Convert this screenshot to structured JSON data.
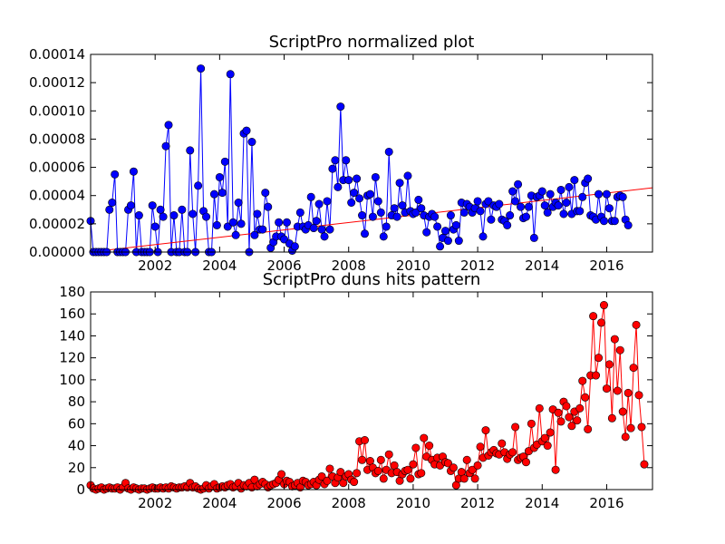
{
  "chart_data": [
    {
      "type": "line",
      "title": "ScriptPro normalized plot",
      "xlabel": "",
      "ylabel": "",
      "xlim": [
        2000.0,
        2017.42
      ],
      "ylim": [
        0,
        0.00014
      ],
      "x_ticks": [
        2002,
        2004,
        2006,
        2008,
        2010,
        2012,
        2014,
        2016
      ],
      "x_tick_labels": [
        "2002",
        "2004",
        "2006",
        "2008",
        "2010",
        "2012",
        "2014",
        "2016"
      ],
      "y_ticks": [
        0,
        2e-05,
        4e-05,
        6e-05,
        8e-05,
        0.0001,
        0.00012,
        0.00014
      ],
      "y_tick_labels": [
        "0.00000",
        "0.00002",
        "0.00004",
        "0.00006",
        "0.00008",
        "0.00010",
        "0.00012",
        "0.00014"
      ],
      "grid": false,
      "series": [
        {
          "color": "#0000ff",
          "marker": "circle",
          "x_start": 2000.0,
          "x_step": 0.08333,
          "values": [
            2.2e-05,
            0,
            0,
            0,
            0,
            0,
            0,
            3e-05,
            3.5e-05,
            5.5e-05,
            0,
            0,
            0,
            0,
            3e-05,
            3.3e-05,
            5.7e-05,
            0,
            2.6e-05,
            0,
            0,
            0,
            0,
            3.3e-05,
            1.8e-05,
            0,
            3e-05,
            2.5e-05,
            7.5e-05,
            9e-05,
            0,
            2.6e-05,
            0,
            0,
            3e-05,
            0,
            0,
            7.2e-05,
            2.7e-05,
            0,
            4.7e-05,
            0.00013,
            2.9e-05,
            2.5e-05,
            0,
            0,
            4.1e-05,
            1.9e-05,
            5.3e-05,
            4.2e-05,
            6.4e-05,
            1.8e-05,
            0.000126,
            2.1e-05,
            1.2e-05,
            3.5e-05,
            2e-05,
            8.4e-05,
            8.6e-05,
            0,
            7.8e-05,
            1.2e-05,
            2.7e-05,
            1.6e-05,
            1.6e-05,
            4.2e-05,
            3.2e-05,
            3e-06,
            7e-06,
            1.1e-05,
            2.1e-05,
            1.1e-05,
            9e-06,
            2.1e-05,
            6e-06,
            1e-06,
            4e-06,
            1.8e-05,
            2.8e-05,
            1.8e-05,
            1.6e-05,
            1.9e-05,
            3.9e-05,
            1.7e-05,
            2.2e-05,
            3.4e-05,
            1.6e-05,
            1.1e-05,
            3.6e-05,
            1.6e-05,
            5.9e-05,
            6.5e-05,
            4.6e-05,
            0.000103,
            5.1e-05,
            6.5e-05,
            5.1e-05,
            3.5e-05,
            4.2e-05,
            5.2e-05,
            3.8e-05,
            2.6e-05,
            1.3e-05,
            4e-05,
            4.1e-05,
            2.5e-05,
            5.3e-05,
            3.6e-05,
            2.8e-05,
            1.1e-05,
            1.8e-05,
            7.1e-05,
            2.6e-05,
            3.1e-05,
            2.5e-05,
            4.9e-05,
            3.3e-05,
            2.8e-05,
            5.4e-05,
            2.9e-05,
            2.7e-05,
            2.8e-05,
            3.7e-05,
            3.1e-05,
            2.6e-05,
            1.4e-05,
            2.5e-05,
            2.7e-05,
            2.5e-05,
            1.8e-05,
            4e-06,
            1e-05,
            1.5e-05,
            8e-06,
            2.6e-05,
            1.6e-05,
            1.9e-05,
            8e-06,
            3.5e-05,
            2.8e-05,
            3.4e-05,
            3.2e-05,
            2.8e-05,
            3.1e-05,
            3.6e-05,
            2.9e-05,
            1.1e-05,
            3.4e-05,
            3.6e-05,
            2.3e-05,
            3.3e-05,
            3.2e-05,
            3.4e-05,
            2.3e-05,
            2.2e-05,
            1.9e-05,
            2.6e-05,
            4.3e-05,
            3.6e-05,
            4.8e-05,
            3.2e-05,
            2.4e-05,
            2.5e-05,
            3.2e-05,
            4e-05,
            1e-05,
            3.9e-05,
            4e-05,
            4.3e-05,
            3.3e-05,
            2.8e-05,
            4.1e-05,
            3.2e-05,
            3.5e-05,
            3.3e-05,
            4.4e-05,
            2.7e-05,
            3.5e-05,
            4.6e-05,
            2.7e-05,
            5.1e-05,
            2.9e-05,
            2.9e-05,
            3.9e-05,
            4.9e-05,
            5.2e-05,
            2.6e-05,
            2.5e-05,
            2.3e-05,
            4.1e-05,
            2.5e-05,
            2.2e-05,
            4.1e-05,
            3.1e-05,
            2.2e-05,
            2.2e-05,
            3.9e-05,
            4e-05,
            3.9e-05,
            2.3e-05,
            1.9e-05
          ]
        },
        {
          "color": "#ff0000",
          "marker": "none",
          "x": [
            2000.0,
            2017.42
          ],
          "values": [
            0.0,
            4.55e-05
          ]
        }
      ]
    },
    {
      "type": "line",
      "title": "ScriptPro duns hits pattern",
      "xlabel": "",
      "ylabel": "",
      "xlim": [
        2000.0,
        2017.42
      ],
      "ylim": [
        0,
        180
      ],
      "x_ticks": [
        2002,
        2004,
        2006,
        2008,
        2010,
        2012,
        2014,
        2016
      ],
      "x_tick_labels": [
        "2002",
        "2004",
        "2006",
        "2008",
        "2010",
        "2012",
        "2014",
        "2016"
      ],
      "y_ticks": [
        0,
        20,
        40,
        60,
        80,
        100,
        120,
        140,
        160,
        180
      ],
      "y_tick_labels": [
        "0",
        "20",
        "40",
        "60",
        "80",
        "100",
        "120",
        "140",
        "160",
        "180"
      ],
      "grid": false,
      "series": [
        {
          "color": "#ff0000",
          "marker": "circle",
          "x_start": 2000.0,
          "x_step": 0.08333,
          "values": [
            4,
            1,
            0,
            1,
            2,
            0,
            1,
            2,
            1,
            1,
            2,
            0,
            2,
            6,
            1,
            0,
            2,
            1,
            0,
            1,
            1,
            0,
            1,
            2,
            1,
            1,
            2,
            1,
            2,
            1,
            3,
            2,
            1,
            2,
            2,
            3,
            2,
            6,
            2,
            3,
            1,
            0,
            1,
            4,
            1,
            3,
            5,
            1,
            2,
            3,
            2,
            4,
            5,
            2,
            3,
            6,
            1,
            4,
            3,
            6,
            2,
            9,
            3,
            5,
            7,
            5,
            2,
            4,
            5,
            6,
            9,
            14,
            5,
            8,
            7,
            3,
            4,
            6,
            2,
            8,
            7,
            4,
            5,
            7,
            4,
            9,
            12,
            5,
            8,
            19,
            12,
            6,
            11,
            16,
            6,
            12,
            14,
            9,
            7,
            15,
            44,
            27,
            45,
            18,
            26,
            20,
            15,
            17,
            27,
            10,
            18,
            32,
            15,
            22,
            16,
            8,
            14,
            17,
            18,
            10,
            23,
            38,
            14,
            15,
            47,
            30,
            40,
            27,
            23,
            29,
            22,
            30,
            25,
            24,
            17,
            20,
            4,
            10,
            16,
            10,
            27,
            15,
            18,
            10,
            22,
            39,
            29,
            54,
            31,
            34,
            36,
            33,
            32,
            42,
            34,
            28,
            32,
            34,
            57,
            27,
            29,
            30,
            25,
            35,
            60,
            38,
            41,
            74,
            44,
            47,
            40,
            52,
            73,
            18,
            70,
            62,
            80,
            76,
            66,
            58,
            71,
            63,
            74,
            99,
            84,
            55,
            104,
            158,
            104,
            120,
            152,
            168,
            92,
            114,
            65,
            137,
            90,
            127,
            71,
            48,
            88,
            56,
            111,
            150,
            86,
            57,
            23
          ]
        }
      ]
    }
  ]
}
